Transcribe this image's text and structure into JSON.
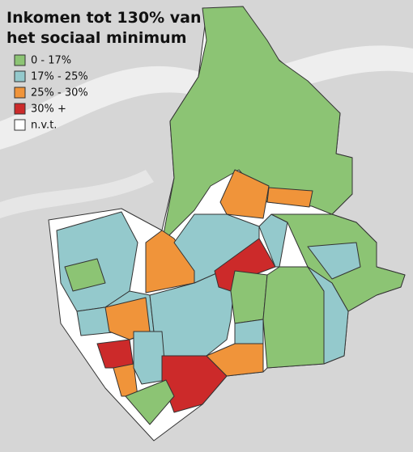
{
  "map": {
    "title": [
      "Inkomen tot 130% van",
      "het sociaal minimum"
    ],
    "legend": [
      {
        "label": "0 - 17%",
        "color": "#8cc474"
      },
      {
        "label": "17% - 25%",
        "color": "#94c9cc"
      },
      {
        "label": "25% - 30%",
        "color": "#f0943a"
      },
      {
        "label": "30% +",
        "color": "#cc2a2a"
      },
      {
        "label": "n.v.t.",
        "color": "#ffffff"
      }
    ]
  }
}
